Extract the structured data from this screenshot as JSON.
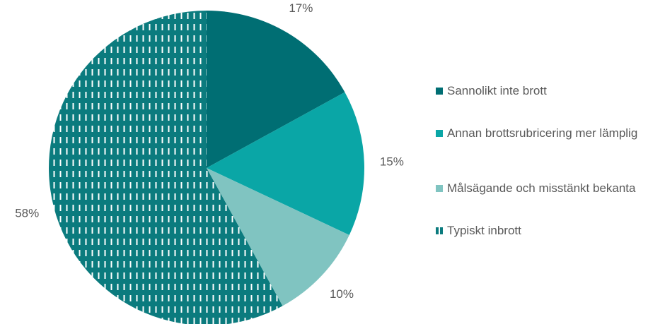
{
  "chart_data": {
    "type": "pie",
    "categories": [
      "Sannolikt inte brott",
      "Annan brottsrubricering mer lämplig",
      "Målsägande och misstänkt bekanta",
      "Typiskt inbrott"
    ],
    "values": [
      17,
      15,
      10,
      58
    ],
    "value_labels": [
      "17%",
      "15%",
      "10%",
      "58%"
    ],
    "colors": [
      "#006e73",
      "#0aa6a6",
      "#80c4c1",
      "#0b7b7e"
    ],
    "patterned": [
      false,
      false,
      false,
      true
    ],
    "legend": "right"
  }
}
